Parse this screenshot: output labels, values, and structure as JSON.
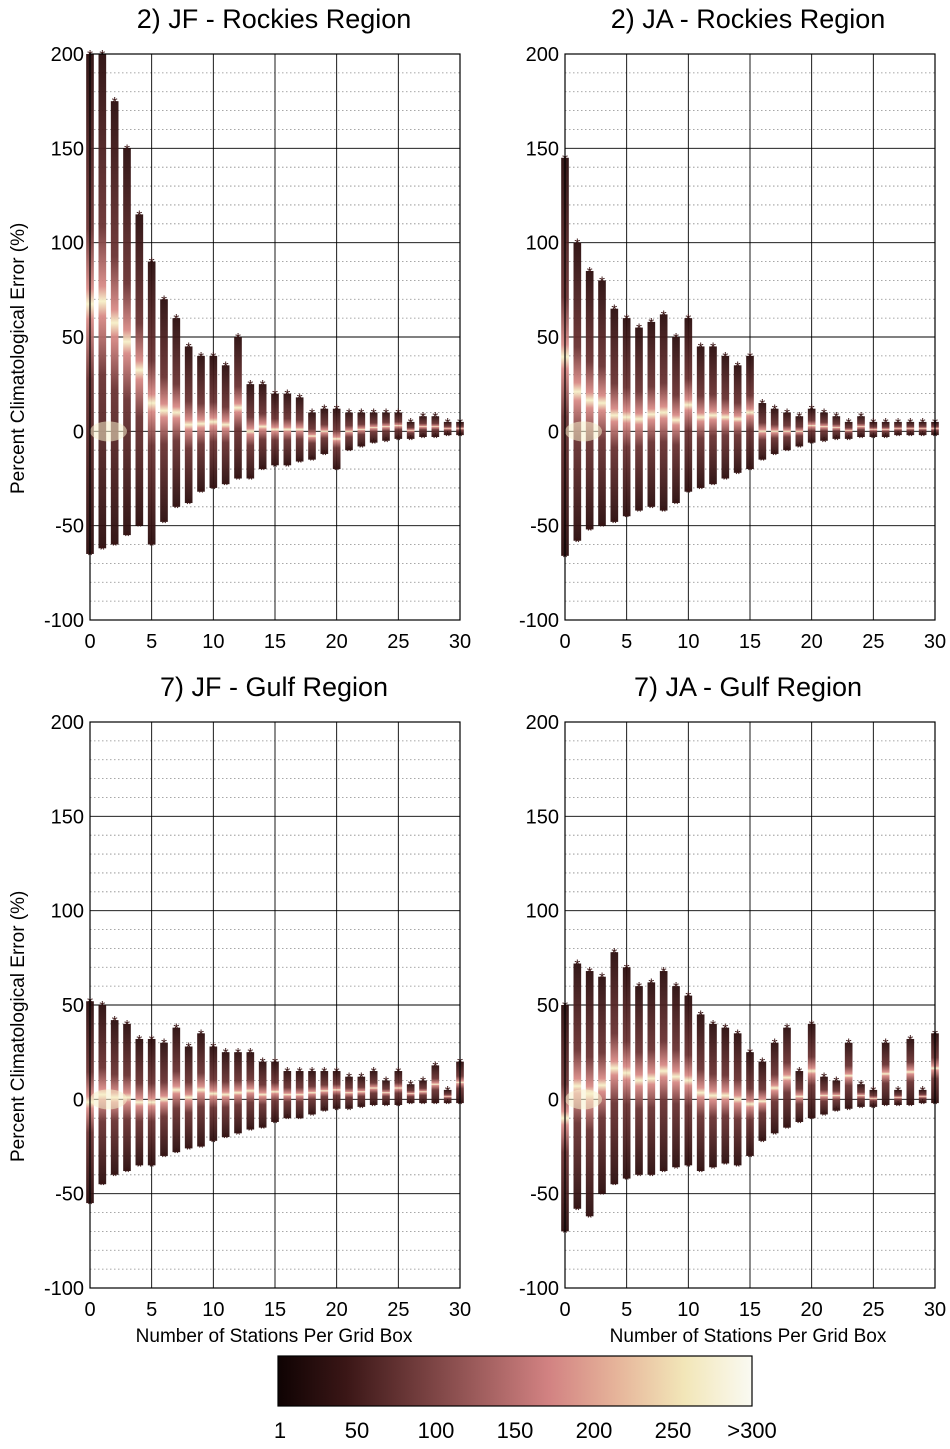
{
  "chart_data": [
    {
      "type": "scatter",
      "title": "2) JF - Rockies Region",
      "xlabel": "",
      "ylabel": "Percent Climatological Error (%)",
      "xlim": [
        0,
        30
      ],
      "ylim": [
        -100,
        200
      ],
      "x_ticks": [
        0,
        5,
        10,
        15,
        20,
        25,
        30
      ],
      "y_ticks": [
        -100,
        -50,
        0,
        50,
        100,
        150,
        200
      ],
      "grid": true,
      "envelope": {
        "stations": [
          0,
          1,
          2,
          3,
          4,
          5,
          6,
          7,
          8,
          9,
          10,
          11,
          12,
          13,
          14,
          15,
          16,
          17,
          18,
          19,
          20,
          21,
          22,
          23,
          24,
          25,
          26,
          27,
          28,
          29,
          30
        ],
        "max_error": [
          200,
          200,
          175,
          150,
          115,
          90,
          70,
          60,
          45,
          40,
          40,
          35,
          50,
          25,
          25,
          20,
          20,
          18,
          10,
          12,
          12,
          10,
          10,
          10,
          10,
          10,
          5,
          8,
          8,
          5,
          5
        ],
        "min_error": [
          -65,
          -62,
          -60,
          -55,
          -50,
          -60,
          -48,
          -40,
          -38,
          -32,
          -30,
          -28,
          -25,
          -25,
          -20,
          -18,
          -18,
          -16,
          -15,
          -12,
          -20,
          -10,
          -8,
          -6,
          -5,
          -4,
          -4,
          -3,
          -3,
          -2,
          -2
        ]
      }
    },
    {
      "type": "scatter",
      "title": "2) JA - Rockies Region",
      "xlabel": "",
      "ylabel": "",
      "xlim": [
        0,
        30
      ],
      "ylim": [
        -100,
        200
      ],
      "x_ticks": [
        0,
        5,
        10,
        15,
        20,
        25,
        30
      ],
      "y_ticks": [
        -100,
        -50,
        0,
        50,
        100,
        150,
        200
      ],
      "grid": true,
      "envelope": {
        "stations": [
          0,
          1,
          2,
          3,
          4,
          5,
          6,
          7,
          8,
          9,
          10,
          11,
          12,
          13,
          14,
          15,
          16,
          17,
          18,
          19,
          20,
          21,
          22,
          23,
          24,
          25,
          26,
          27,
          28,
          29,
          30
        ],
        "max_error": [
          145,
          100,
          85,
          80,
          65,
          60,
          55,
          58,
          62,
          50,
          60,
          45,
          45,
          40,
          35,
          40,
          15,
          12,
          10,
          8,
          12,
          10,
          8,
          5,
          8,
          5,
          5,
          5,
          5,
          5,
          5
        ],
        "min_error": [
          -66,
          -58,
          -52,
          -50,
          -48,
          -45,
          -42,
          -40,
          -42,
          -38,
          -32,
          -30,
          -28,
          -25,
          -22,
          -20,
          -15,
          -12,
          -10,
          -8,
          -6,
          -5,
          -4,
          -4,
          -3,
          -3,
          -3,
          -2,
          -2,
          -2,
          -2
        ]
      }
    },
    {
      "type": "scatter",
      "title": "7) JF - Gulf Region",
      "xlabel": "Number of Stations Per Grid Box",
      "ylabel": "Percent Climatological Error (%)",
      "xlim": [
        0,
        30
      ],
      "ylim": [
        -100,
        200
      ],
      "x_ticks": [
        0,
        5,
        10,
        15,
        20,
        25,
        30
      ],
      "y_ticks": [
        -100,
        -50,
        0,
        50,
        100,
        150,
        200
      ],
      "grid": true,
      "envelope": {
        "stations": [
          0,
          1,
          2,
          3,
          4,
          5,
          6,
          7,
          8,
          9,
          10,
          11,
          12,
          13,
          14,
          15,
          16,
          17,
          18,
          19,
          20,
          21,
          22,
          23,
          24,
          25,
          26,
          27,
          28,
          29,
          30
        ],
        "max_error": [
          52,
          50,
          42,
          40,
          32,
          32,
          30,
          38,
          28,
          35,
          28,
          25,
          25,
          25,
          20,
          20,
          15,
          15,
          15,
          15,
          15,
          12,
          12,
          15,
          10,
          15,
          8,
          10,
          18,
          5,
          20
        ],
        "min_error": [
          -55,
          -45,
          -40,
          -38,
          -35,
          -35,
          -30,
          -28,
          -26,
          -25,
          -22,
          -20,
          -18,
          -16,
          -15,
          -12,
          -10,
          -10,
          -8,
          -6,
          -5,
          -5,
          -4,
          -3,
          -3,
          -3,
          -2,
          -2,
          -2,
          -2,
          -2
        ]
      }
    },
    {
      "type": "scatter",
      "title": "7) JA - Gulf Region",
      "xlabel": "Number of Stations Per Grid Box",
      "ylabel": "",
      "xlim": [
        0,
        30
      ],
      "ylim": [
        -100,
        200
      ],
      "x_ticks": [
        0,
        5,
        10,
        15,
        20,
        25,
        30
      ],
      "y_ticks": [
        -100,
        -50,
        0,
        50,
        100,
        150,
        200
      ],
      "grid": true,
      "envelope": {
        "stations": [
          0,
          1,
          2,
          3,
          4,
          5,
          6,
          7,
          8,
          9,
          10,
          11,
          12,
          13,
          14,
          15,
          16,
          17,
          18,
          19,
          20,
          21,
          22,
          23,
          24,
          25,
          26,
          27,
          28,
          29,
          30
        ],
        "max_error": [
          50,
          72,
          68,
          65,
          78,
          70,
          60,
          62,
          68,
          60,
          55,
          45,
          40,
          38,
          35,
          25,
          20,
          30,
          38,
          15,
          40,
          12,
          10,
          30,
          8,
          5,
          30,
          5,
          32,
          5,
          35
        ],
        "min_error": [
          -70,
          -58,
          -62,
          -50,
          -45,
          -42,
          -40,
          -40,
          -38,
          -36,
          -35,
          -38,
          -36,
          -34,
          -35,
          -30,
          -22,
          -18,
          -15,
          -12,
          -10,
          -8,
          -6,
          -5,
          -4,
          -4,
          -3,
          -3,
          -3,
          -2,
          -2
        ]
      }
    }
  ],
  "colorbar": {
    "ticks": [
      "1",
      "50",
      "100",
      "150",
      "200",
      "250",
      ">300"
    ],
    "colors": [
      "#0f0303",
      "#3a1616",
      "#6e3a3a",
      "#a05e5e",
      "#d28282",
      "#e6b49a",
      "#f2e6b8",
      "#fafaf2"
    ]
  }
}
